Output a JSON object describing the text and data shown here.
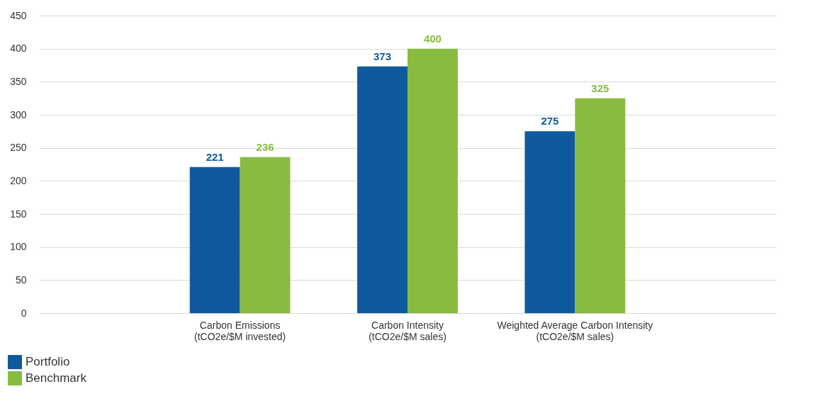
{
  "chart_data": {
    "type": "bar",
    "categories": [
      "Carbon Emissions\n(tCO2e/$M invested)",
      "Carbon Intensity\n(tCO2e/$M sales)",
      "Weighted Average Carbon Intensity\n(tCO2e/$M sales)"
    ],
    "series": [
      {
        "name": "Portfolio",
        "color": "#0f5a9c",
        "values": [
          221,
          373,
          275
        ]
      },
      {
        "name": "Benchmark",
        "color": "#88bb40",
        "values": [
          236,
          400,
          325
        ]
      }
    ],
    "ylim": [
      0,
      450
    ],
    "yticks": [
      0,
      50,
      100,
      150,
      200,
      250,
      300,
      350,
      400,
      450
    ],
    "grid": "y",
    "legend": "bottom left",
    "data_labels": true
  }
}
